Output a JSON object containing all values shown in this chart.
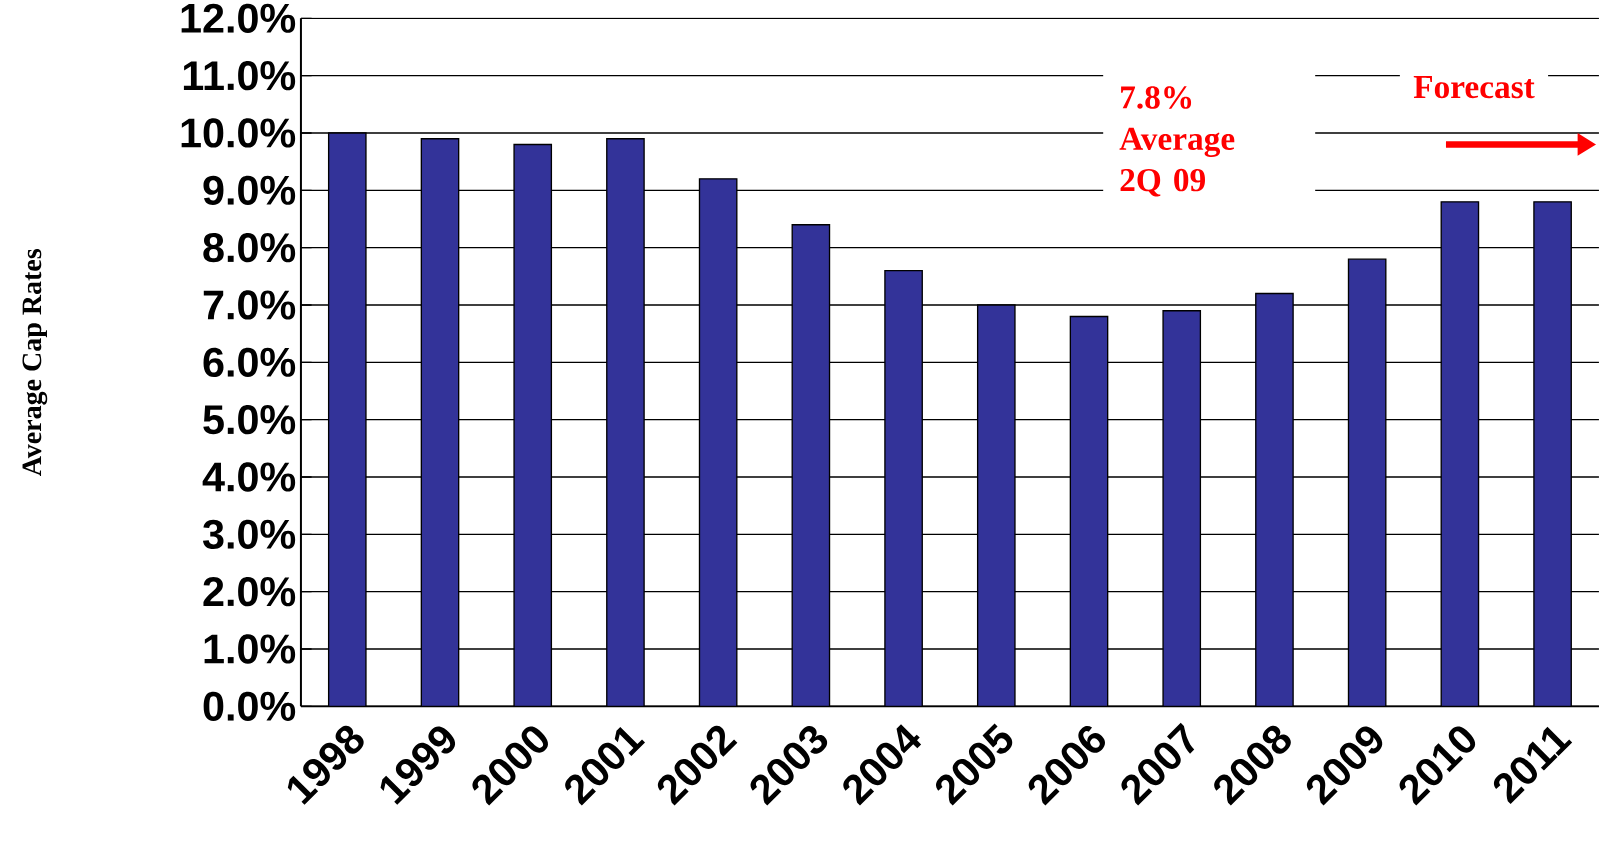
{
  "chart_data": {
    "type": "bar",
    "ylabel": "Average Cap Rates",
    "categories": [
      "1998",
      "1999",
      "2000",
      "2001",
      "2002",
      "2003",
      "2004",
      "2005",
      "2006",
      "2007",
      "2008",
      "2009",
      "2010",
      "2011"
    ],
    "values": [
      10.0,
      9.9,
      9.8,
      9.9,
      9.2,
      8.4,
      7.6,
      7.0,
      6.8,
      6.9,
      7.2,
      7.8,
      8.8,
      8.8
    ],
    "color": "#333399",
    "ylim": [
      0,
      12
    ],
    "yticks": [
      {
        "value": 0,
        "label": "0.0%"
      },
      {
        "value": 1,
        "label": "1.0%"
      },
      {
        "value": 2,
        "label": "2.0%"
      },
      {
        "value": 3,
        "label": "3.0%"
      },
      {
        "value": 4,
        "label": "4.0%"
      },
      {
        "value": 5,
        "label": "5.0%"
      },
      {
        "value": 6,
        "label": "6.0%"
      },
      {
        "value": 7,
        "label": "7.0%"
      },
      {
        "value": 8,
        "label": "8.0%"
      },
      {
        "value": 9,
        "label": "9.0%"
      },
      {
        "value": 10,
        "label": "10.0%"
      },
      {
        "value": 11,
        "label": "11.0%"
      },
      {
        "value": 12,
        "label": "12.0%"
      }
    ],
    "grid": "y",
    "annotations": [
      "7.8% Average 2Q 09",
      "Forecast"
    ]
  }
}
